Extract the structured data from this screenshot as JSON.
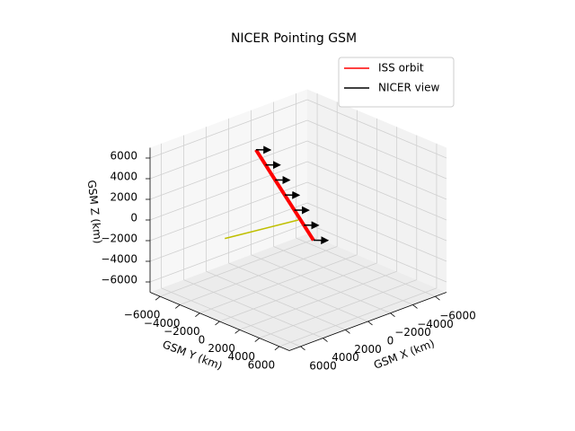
{
  "chart_data": {
    "type": "line3d",
    "title": "NICER Pointing GSM",
    "xlabel": "GSM X (km)",
    "ylabel": "GSM Y (km)",
    "zlabel": "GSM Z (km)",
    "xlim": [
      -7000,
      7000
    ],
    "ylim": [
      -7000,
      7000
    ],
    "zlim": [
      -7000,
      7000
    ],
    "xticks": [
      {
        "value": -6000,
        "label": "−6000"
      },
      {
        "value": -4000,
        "label": "−4000"
      },
      {
        "value": -2000,
        "label": "−2000"
      },
      0,
      2000,
      4000,
      6000
    ],
    "yticks": [
      {
        "value": -6000,
        "label": "−6000"
      },
      {
        "value": -4000,
        "label": "−4000"
      },
      {
        "value": -2000,
        "label": "−2000"
      },
      0,
      2000,
      4000,
      6000
    ],
    "zticks": [
      {
        "value": -6000,
        "label": "−6000"
      },
      {
        "value": -4000,
        "label": "−4000"
      },
      {
        "value": -2000,
        "label": "−2000"
      },
      0,
      2000,
      4000,
      6000
    ],
    "grid": true,
    "legend": "upper right",
    "series": [
      {
        "name": "ISS orbit",
        "color": "#ff0000",
        "width": 4,
        "x": [
          2000,
          1500,
          1000,
          500,
          0,
          -500,
          -1000
        ],
        "y": [
          -2000,
          -1600,
          -1200,
          -800,
          -400,
          0,
          400
        ],
        "z": [
          6800,
          5300,
          3800,
          2300,
          800,
          -700,
          -2200
        ]
      },
      {
        "name": "NICER view",
        "color": "#000000",
        "width": 1.5,
        "arrows": true,
        "x": [
          2000,
          1000,
          null,
          1500,
          500,
          null,
          1000,
          0,
          null,
          500,
          -500,
          null,
          0,
          -1000,
          null,
          -500,
          -1500,
          null,
          -1000,
          -2000
        ],
        "y": [
          -2000,
          -1700,
          null,
          -1600,
          -1300,
          null,
          -1200,
          -900,
          null,
          -800,
          -500,
          null,
          -400,
          -100,
          null,
          0,
          300,
          null,
          400,
          700
        ],
        "z": [
          6800,
          6500,
          null,
          5300,
          5000,
          null,
          3800,
          3500,
          null,
          2300,
          2000,
          null,
          800,
          500,
          null,
          -700,
          -1000,
          null,
          -2200,
          -2500
        ]
      },
      {
        "color": "#bfbf00",
        "width": 1.5,
        "x": [
          3000,
          0
        ],
        "y": [
          -4000,
          0
        ],
        "z": [
          -2200,
          0
        ]
      }
    ]
  }
}
